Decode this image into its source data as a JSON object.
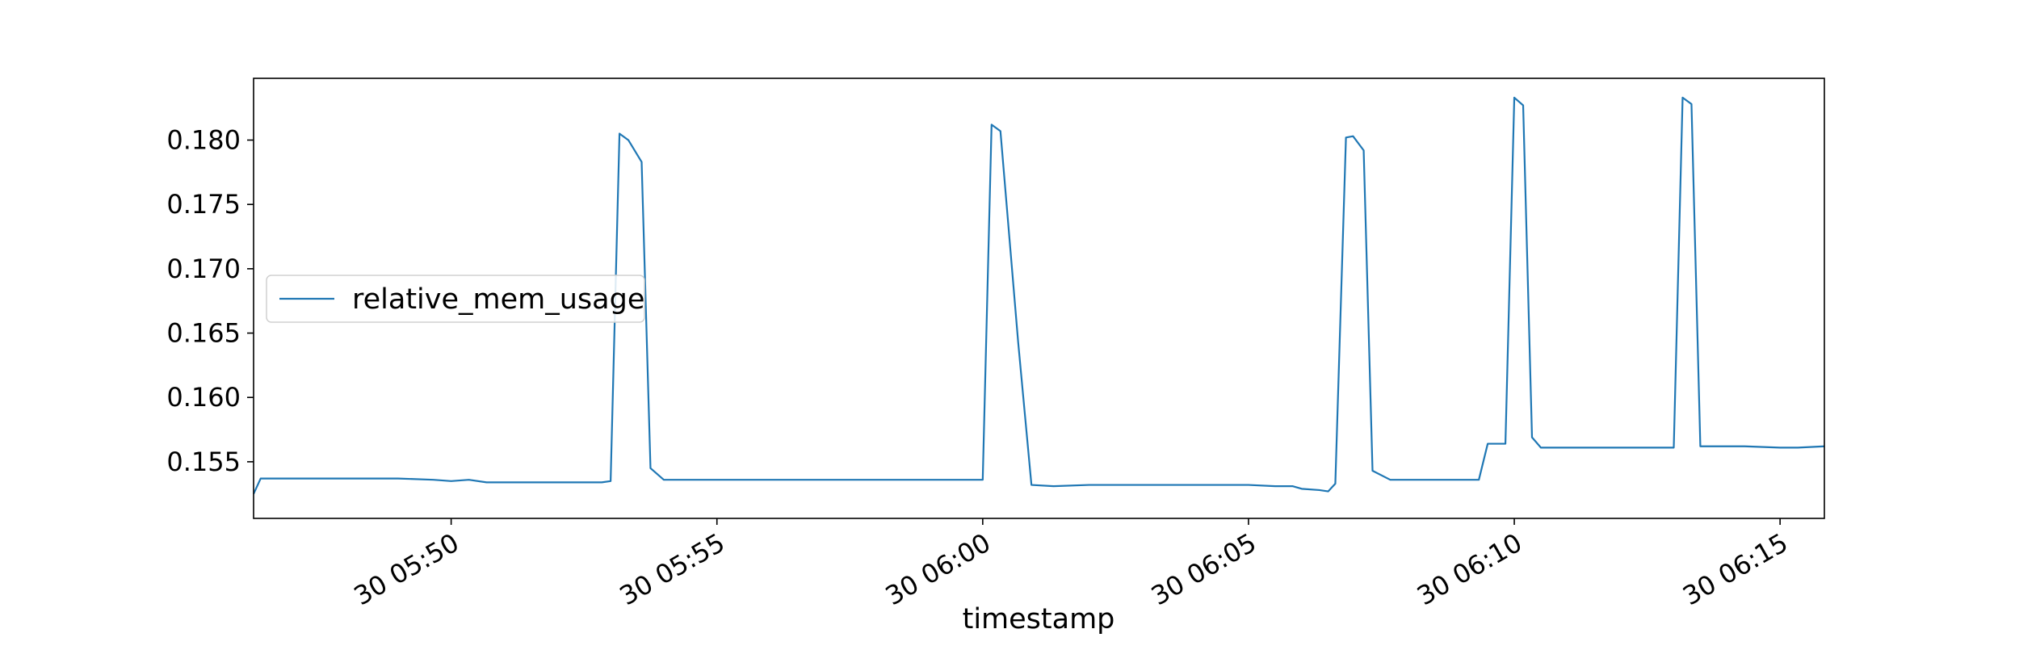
{
  "chart_data": {
    "type": "line",
    "title": "",
    "xlabel": "timestamp",
    "ylabel": "",
    "x_tick_labels": [
      "30 05:50",
      "30 05:55",
      "30 06:00",
      "30 06:05",
      "30 06:10",
      "30 06:15"
    ],
    "x_ticks": [
      "05:50",
      "05:55",
      "06:00",
      "06:05",
      "06:10",
      "06:15"
    ],
    "xlim": [
      "05:46:17",
      "06:15:50"
    ],
    "y_ticks": [
      0.155,
      0.16,
      0.165,
      0.17,
      0.175,
      0.18
    ],
    "y_tick_labels": [
      "0.155",
      "0.160",
      "0.165",
      "0.170",
      "0.175",
      "0.180"
    ],
    "ylim": [
      0.1506,
      0.1848
    ],
    "grid": false,
    "legend": {
      "placement": "center-left",
      "entries": [
        "relative_mem_usage"
      ]
    },
    "line_color": "#1f77b4",
    "series": [
      {
        "name": "relative_mem_usage",
        "x": [
          "05:46:17",
          "05:46:25",
          "05:47:00",
          "05:48:00",
          "05:49:00",
          "05:49:40",
          "05:50:00",
          "05:50:20",
          "05:50:40",
          "05:51:00",
          "05:52:00",
          "05:52:50",
          "05:53:00",
          "05:53:10",
          "05:53:20",
          "05:53:35",
          "05:53:45",
          "05:54:00",
          "05:55:00",
          "05:56:00",
          "05:57:00",
          "05:58:00",
          "05:59:00",
          "06:00:00",
          "06:00:10",
          "06:00:20",
          "06:00:40",
          "06:00:55",
          "06:01:20",
          "06:02:00",
          "06:03:00",
          "06:04:00",
          "06:05:00",
          "06:05:30",
          "06:05:50",
          "06:06:00",
          "06:06:20",
          "06:06:30",
          "06:06:38",
          "06:06:50",
          "06:06:58",
          "06:07:10",
          "06:07:20",
          "06:07:40",
          "06:08:00",
          "06:09:00",
          "06:09:20",
          "06:09:30",
          "06:09:50",
          "06:10:00",
          "06:10:10",
          "06:10:20",
          "06:10:30",
          "06:11:00",
          "06:12:00",
          "06:13:00",
          "06:13:10",
          "06:13:20",
          "06:13:30",
          "06:13:40",
          "06:13:55",
          "06:14:20",
          "06:15:00",
          "06:15:20",
          "06:15:50"
        ],
        "values": [
          0.1525,
          0.1537,
          0.1537,
          0.1537,
          0.1537,
          0.1536,
          0.1535,
          0.1536,
          0.1534,
          0.1534,
          0.1534,
          0.1534,
          0.1535,
          0.1805,
          0.18,
          0.1783,
          0.1545,
          0.1536,
          0.1536,
          0.1536,
          0.1536,
          0.1536,
          0.1536,
          0.1536,
          0.1812,
          0.1807,
          0.1643,
          0.1532,
          0.1531,
          0.1532,
          0.1532,
          0.1532,
          0.1532,
          0.1531,
          0.1531,
          0.1529,
          0.1528,
          0.1527,
          0.1533,
          0.1802,
          0.1803,
          0.1792,
          0.1543,
          0.1536,
          0.1536,
          0.1536,
          0.1536,
          0.1564,
          0.1564,
          0.1833,
          0.1827,
          0.1569,
          0.1561,
          0.1561,
          0.1561,
          0.1561,
          0.1833,
          0.1828,
          0.1562,
          0.1562,
          0.1562,
          0.1562,
          0.1561,
          0.1561,
          0.1562
        ]
      }
    ]
  }
}
